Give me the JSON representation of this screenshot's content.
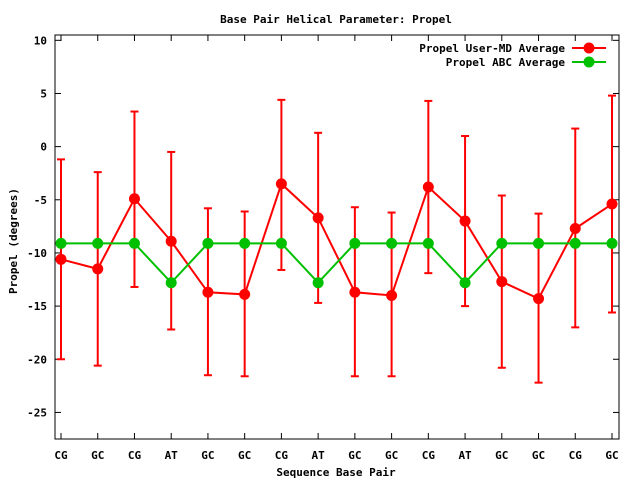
{
  "chart_data": {
    "type": "line",
    "title": "Base Pair Helical Parameter: Propel",
    "xlabel": "Sequence Base Pair",
    "ylabel": "Propel (degrees)",
    "categories": [
      "CG",
      "GC",
      "CG",
      "AT",
      "GC",
      "GC",
      "CG",
      "AT",
      "GC",
      "GC",
      "CG",
      "AT",
      "GC",
      "GC",
      "CG",
      "GC"
    ],
    "ylim": [
      -27.5,
      10.5
    ],
    "yticks": [
      10,
      5,
      0,
      -5,
      -10,
      -15,
      -20,
      -25
    ],
    "grid": false,
    "legend_position": "top-right",
    "series": [
      {
        "name": "Propel User-MD Average",
        "color": "#ff0000",
        "values": [
          -10.6,
          -11.5,
          -4.9,
          -8.9,
          -13.7,
          -13.9,
          -3.5,
          -6.7,
          -13.7,
          -14.0,
          -3.8,
          -7.0,
          -12.7,
          -14.3,
          -7.7,
          -5.4
        ],
        "error_low": [
          -20.0,
          -20.6,
          -13.2,
          -17.2,
          -21.5,
          -21.6,
          -11.6,
          -14.7,
          -21.6,
          -21.6,
          -11.9,
          -15.0,
          -20.8,
          -22.2,
          -17.0,
          -15.6
        ],
        "error_high": [
          -1.2,
          -2.4,
          3.3,
          -0.5,
          -5.8,
          -6.1,
          4.4,
          1.3,
          -5.7,
          -6.2,
          4.3,
          1.0,
          -4.6,
          -6.3,
          1.7,
          4.8
        ]
      },
      {
        "name": "Propel ABC Average",
        "color": "#00c000",
        "values": [
          -9.1,
          -9.1,
          -9.1,
          -12.8,
          -9.1,
          -9.1,
          -9.1,
          -12.8,
          -9.1,
          -9.1,
          -9.1,
          -12.8,
          -9.1,
          -9.1,
          -9.1,
          -9.1
        ]
      }
    ]
  }
}
